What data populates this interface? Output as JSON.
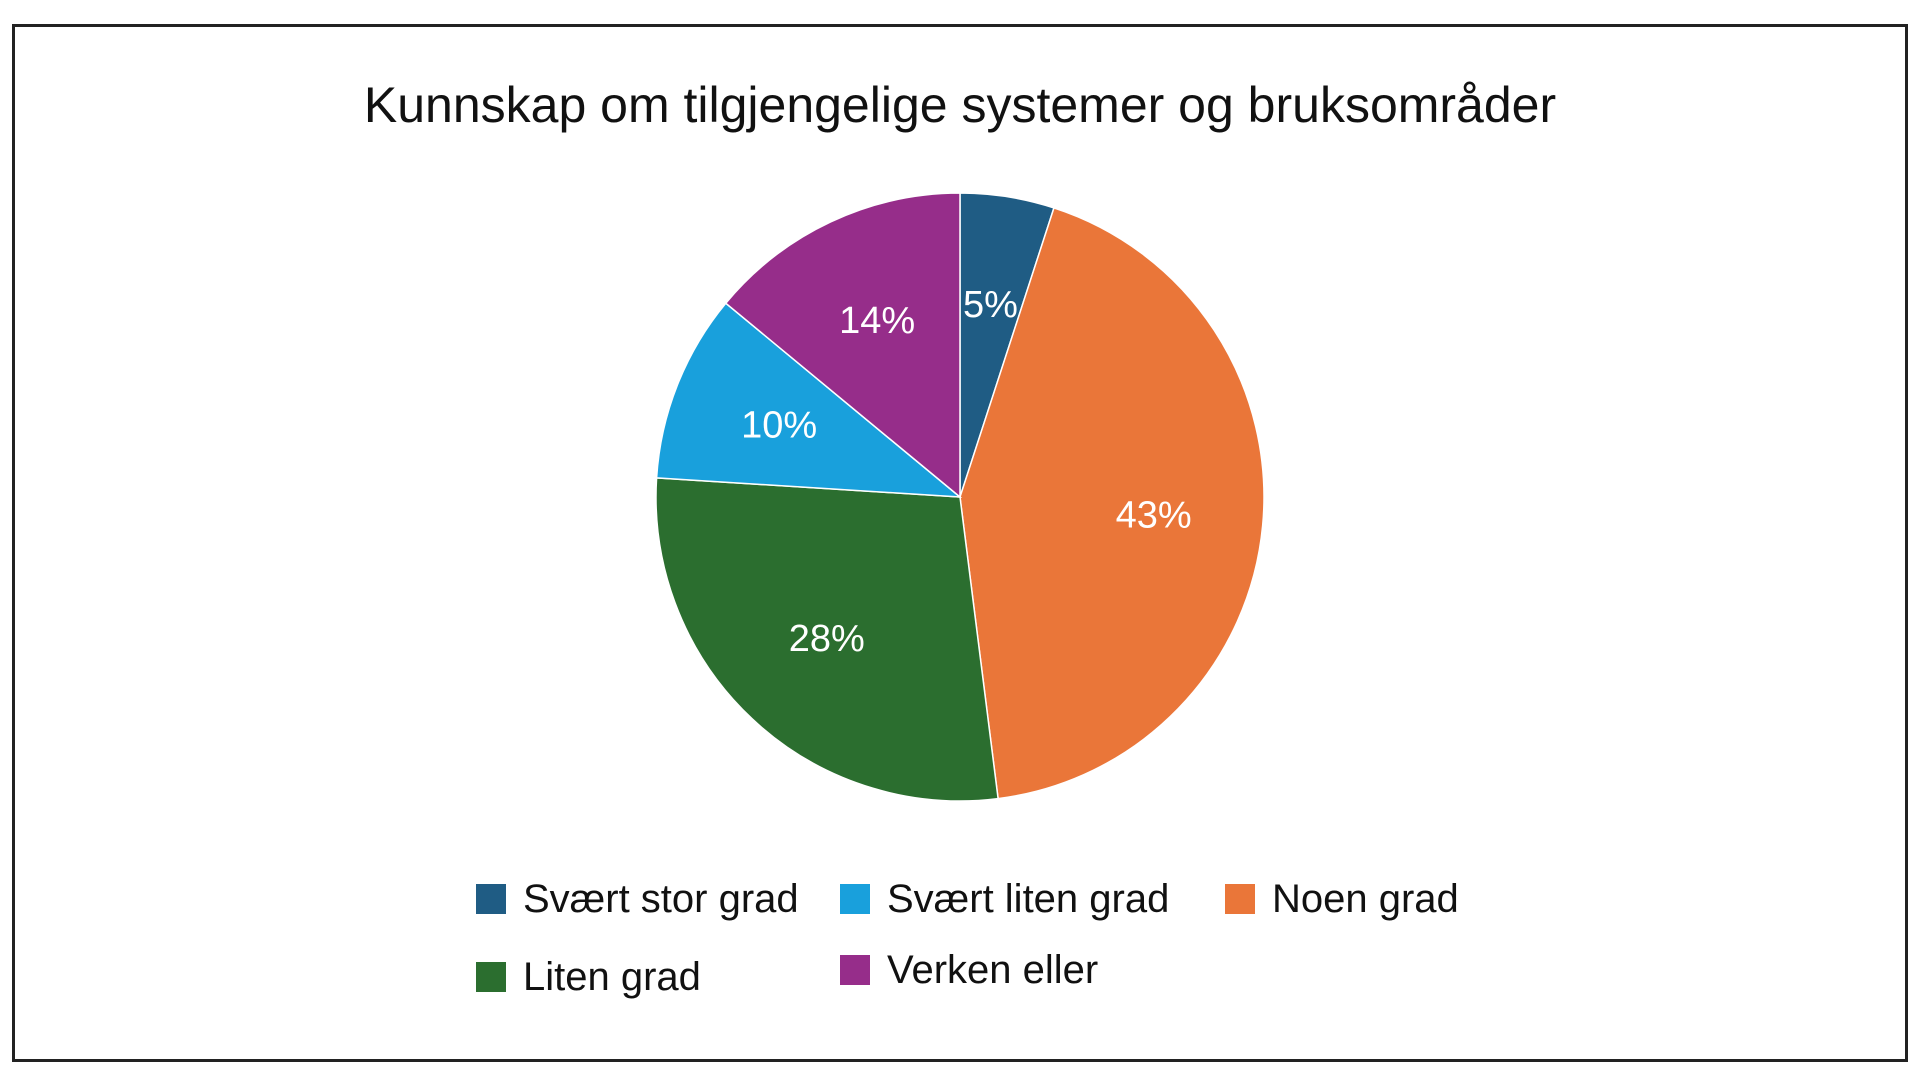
{
  "chart_data": {
    "type": "pie",
    "title": "Kunnskap om tilgjengelige systemer og bruksområder",
    "slices": [
      {
        "name": "Svært stor grad",
        "value": 5,
        "label": "5%",
        "color": "#1f5c84"
      },
      {
        "name": "Noen grad",
        "value": 43,
        "label": "43%",
        "color": "#ea7639"
      },
      {
        "name": "Liten grad",
        "value": 28,
        "label": "28%",
        "color": "#2b6e2f"
      },
      {
        "name": "Svært liten grad",
        "value": 10,
        "label": "10%",
        "color": "#19a0dc"
      },
      {
        "name": "Verken eller",
        "value": 14,
        "label": "14%",
        "color": "#962d8a"
      }
    ],
    "start_angle_deg": 0,
    "direction": "clockwise",
    "legend_position": "bottom",
    "legend": [
      {
        "label": "Svært stor grad",
        "color": "#1f5c84"
      },
      {
        "label": "Svært liten grad",
        "color": "#19a0dc"
      },
      {
        "label": "Noen grad",
        "color": "#ea7639"
      },
      {
        "label": "Liten grad",
        "color": "#2b6e2f"
      },
      {
        "label": "Verken eller",
        "color": "#962d8a"
      }
    ]
  }
}
